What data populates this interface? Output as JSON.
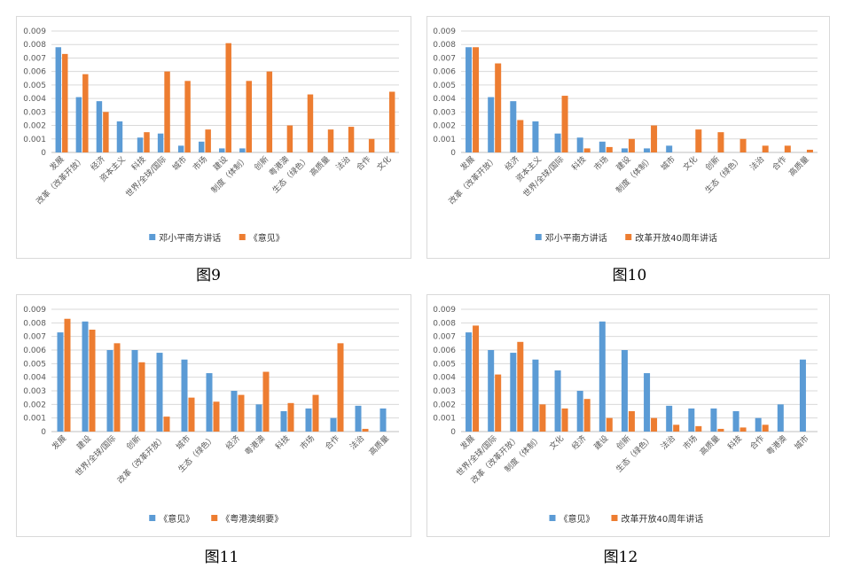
{
  "colors": {
    "blue": "#5b9bd5",
    "orange": "#ed7d31",
    "grid": "#d9d9d9",
    "axis": "#bfbfbf"
  },
  "y_ticks": [
    "0",
    "0.001",
    "0.002",
    "0.003",
    "0.004",
    "0.005",
    "0.006",
    "0.007",
    "0.008",
    "0.009"
  ],
  "chart_data": [
    {
      "id": "fig9",
      "caption": "图9",
      "type": "bar",
      "ylim": [
        0,
        0.009
      ],
      "grid": true,
      "legend_position": "bottom",
      "categories": [
        "发展",
        "改革（改革开放）",
        "经济",
        "资本主义",
        "科技",
        "世界/全球/国际",
        "城市",
        "市场",
        "建设",
        "制度（体制）",
        "创新",
        "粤港澳",
        "生态（绿色）",
        "高质量",
        "法治",
        "合作",
        "文化"
      ],
      "series": [
        {
          "name": "邓小平南方讲话",
          "color": "blue",
          "values": [
            0.0078,
            0.0041,
            0.0038,
            0.0023,
            0.0011,
            0.0014,
            0.0005,
            0.0008,
            0.0003,
            0.0003,
            0,
            0,
            0,
            0,
            0,
            0,
            0
          ]
        },
        {
          "name": "《意见》",
          "color": "orange",
          "values": [
            0.0073,
            0.0058,
            0.003,
            0,
            0.0015,
            0.006,
            0.0053,
            0.0017,
            0.0081,
            0.0053,
            0.006,
            0.002,
            0.0043,
            0.0017,
            0.0019,
            0.001,
            0.0045
          ]
        }
      ]
    },
    {
      "id": "fig10",
      "caption": "图10",
      "type": "bar",
      "ylim": [
        0,
        0.009
      ],
      "grid": true,
      "legend_position": "bottom",
      "categories": [
        "发展",
        "改革（改革开放）",
        "经济",
        "资本主义",
        "世界/全球/国际",
        "科技",
        "市场",
        "建设",
        "制度（体制）",
        "城市",
        "文化",
        "创新",
        "生态（绿色）",
        "法治",
        "合作",
        "高质量"
      ],
      "series": [
        {
          "name": "邓小平南方讲话",
          "color": "blue",
          "values": [
            0.0078,
            0.0041,
            0.0038,
            0.0023,
            0.0014,
            0.0011,
            0.0008,
            0.0003,
            0.0003,
            0.0005,
            0,
            0,
            0,
            0,
            0,
            0
          ]
        },
        {
          "name": "改革开放40周年讲话",
          "color": "orange",
          "values": [
            0.0078,
            0.0066,
            0.0024,
            0,
            0.0042,
            0.0003,
            0.0004,
            0.001,
            0.002,
            0,
            0.0017,
            0.0015,
            0.001,
            0.0005,
            0.0005,
            0.0002
          ]
        }
      ]
    },
    {
      "id": "fig11",
      "caption": "图11",
      "type": "bar",
      "ylim": [
        0,
        0.009
      ],
      "grid": true,
      "legend_position": "bottom",
      "categories": [
        "发展",
        "建设",
        "世界/全球/国际",
        "创新",
        "改革（改革开放）",
        "城市",
        "生态（绿色）",
        "经济",
        "粤港澳",
        "科技",
        "市场",
        "合作",
        "法治",
        "高质量"
      ],
      "series": [
        {
          "name": "《意见》",
          "color": "blue",
          "values": [
            0.0073,
            0.0081,
            0.006,
            0.006,
            0.0058,
            0.0053,
            0.0043,
            0.003,
            0.002,
            0.0015,
            0.0017,
            0.001,
            0.0019,
            0.0017
          ]
        },
        {
          "name": "《粤港澳纲要》",
          "color": "orange",
          "values": [
            0.0083,
            0.0075,
            0.0065,
            0.0051,
            0.0011,
            0.0025,
            0.0022,
            0.0027,
            0.0044,
            0.0021,
            0.0027,
            0.0065,
            0.0002,
            0
          ]
        }
      ]
    },
    {
      "id": "fig12",
      "caption": "图12",
      "type": "bar",
      "ylim": [
        0,
        0.009
      ],
      "grid": true,
      "legend_position": "bottom",
      "categories": [
        "发展",
        "世界/全球/国际",
        "改革（改革开放）",
        "制度（体制）",
        "文化",
        "经济",
        "建设",
        "创新",
        "生态（绿色）",
        "法治",
        "市场",
        "高质量",
        "科技",
        "合作",
        "粤港澳",
        "城市"
      ],
      "series": [
        {
          "name": "《意见》",
          "color": "blue",
          "values": [
            0.0073,
            0.006,
            0.0058,
            0.0053,
            0.0045,
            0.003,
            0.0081,
            0.006,
            0.0043,
            0.0019,
            0.0017,
            0.0017,
            0.0015,
            0.001,
            0.002,
            0.0053
          ]
        },
        {
          "name": "改革开放40周年讲话",
          "color": "orange",
          "values": [
            0.0078,
            0.0042,
            0.0066,
            0.002,
            0.0017,
            0.0024,
            0.001,
            0.0015,
            0.001,
            0.0005,
            0.0004,
            0.0002,
            0.0003,
            0.0005,
            0,
            0
          ]
        }
      ]
    }
  ]
}
